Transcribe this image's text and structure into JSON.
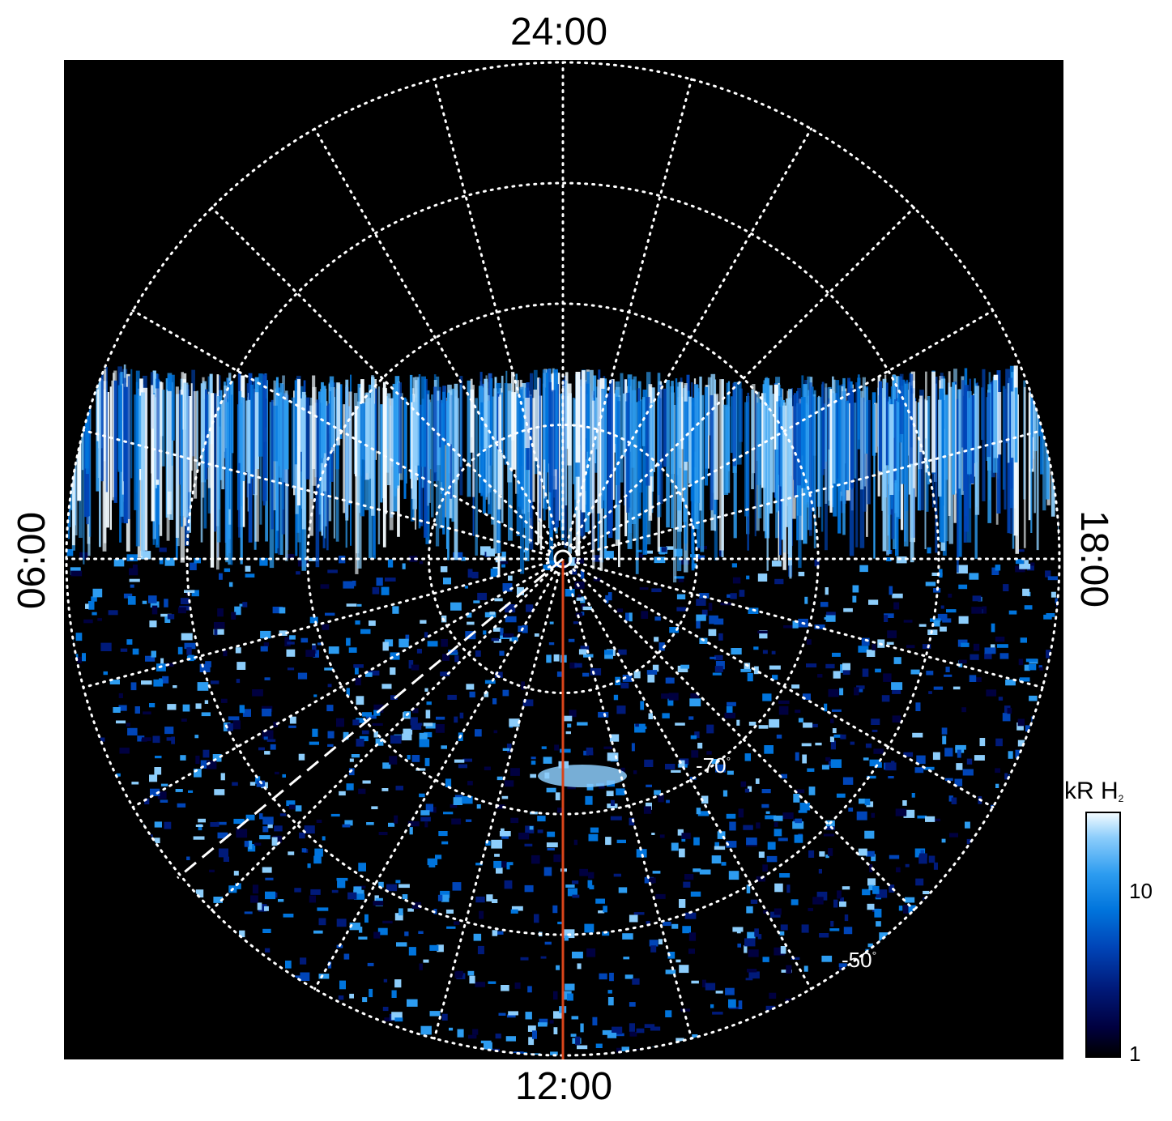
{
  "time_labels": {
    "top": "24:00",
    "bottom": "12:00",
    "left": "06:00",
    "right": "18:00"
  },
  "latitude_labels": {
    "inner": "-70",
    "outer": "-50",
    "degree_symbol": "°"
  },
  "colorbar": {
    "title": "kR H",
    "title_subscript": "2",
    "ticks": [
      "10",
      "1"
    ],
    "colors": [
      "#000000",
      "#000040",
      "#001a7a",
      "#0045b8",
      "#0074dc",
      "#2d9cf0",
      "#8ccdfb",
      "#f2fbff"
    ]
  },
  "colors": {
    "background": "#000000",
    "grid": "#ffffff",
    "meridian_line": "#d9441a",
    "dashed_line": "#ffffff",
    "auroral_band": "#4aa8f0"
  }
}
